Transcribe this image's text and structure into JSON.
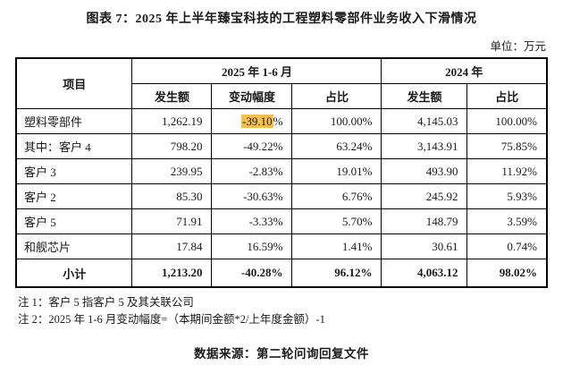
{
  "title": "图表 7：2025 年上半年臻宝科技的工程塑料零部件业务收入下滑情况",
  "unit_label": "单位：万元",
  "colors": {
    "highlight": "#F6BE4A",
    "text": "#1a1a1a",
    "border": "#000000"
  },
  "table": {
    "col_header_project": "项目",
    "col_group_2025": "2025 年 1-6 月",
    "col_group_2024": "2024 年",
    "sub_headers": [
      "发生额",
      "变动幅度",
      "占比",
      "发生额",
      "占比"
    ],
    "rows": [
      {
        "label": "塑料零部件",
        "cells": [
          "1,262.19",
          "-39.10%",
          "100.00%",
          "4,145.03",
          "100.00%"
        ],
        "highlight_col": 1,
        "highlight_text": "-39.10",
        "highlight_suffix": "%"
      },
      {
        "label": "其中：客户 4",
        "cells": [
          "798.20",
          "-49.22%",
          "63.24%",
          "3,143.91",
          "75.85%"
        ]
      },
      {
        "label": "客户 3",
        "cells": [
          "239.95",
          "-2.83%",
          "19.01%",
          "493.90",
          "11.92%"
        ]
      },
      {
        "label": "客户 2",
        "cells": [
          "85.30",
          "-30.63%",
          "6.76%",
          "245.92",
          "5.93%"
        ]
      },
      {
        "label": "客户 5",
        "cells": [
          "71.91",
          "-3.33%",
          "5.70%",
          "148.79",
          "3.59%"
        ]
      },
      {
        "label": "和舰芯片",
        "cells": [
          "17.84",
          "16.59%",
          "1.41%",
          "30.61",
          "0.74%"
        ]
      },
      {
        "label": "小计",
        "cells": [
          "1,213.20",
          "-40.28%",
          "96.12%",
          "4,063.12",
          "98.02%"
        ],
        "is_total": true
      }
    ]
  },
  "notes": [
    "注 1：客户 5 指客户 5 及其关联公司",
    "注 2：2025 年 1-6 月变动幅度=（本期间金额*2/上年度金额）-1"
  ],
  "source": "数据来源：第二轮问询回复文件"
}
